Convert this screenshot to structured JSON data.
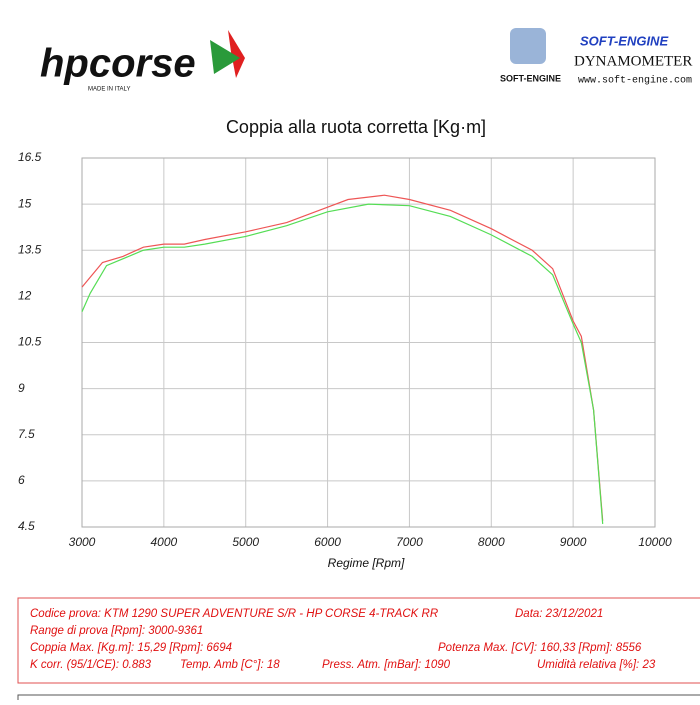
{
  "header": {
    "brand": "hpcorse",
    "brand_tagline": "MADE IN ITALY",
    "dyno_brand": "SOFT-ENGINE",
    "dyno_title": "DYNAMOMETER",
    "dyno_small": "SOFT-ENGINE",
    "dyno_url": "www.soft-engine.com"
  },
  "chart_data": {
    "type": "line",
    "title": "Coppia alla ruota corretta [Kg·m]",
    "x_label": "Regime [Rpm]",
    "xlim": [
      3000,
      10000
    ],
    "xticks": [
      3000,
      4000,
      5000,
      6000,
      7000,
      8000,
      9000,
      10000
    ],
    "ylim": [
      4.5,
      16.5
    ],
    "yticks": [
      4.5,
      6,
      7.5,
      9,
      10.5,
      12,
      13.5,
      15,
      16.5
    ],
    "grid": true,
    "series": [
      {
        "color": "#ee5555",
        "x": [
          3000,
          3250,
          3500,
          3750,
          4000,
          4250,
          4500,
          5000,
          5500,
          6000,
          6250,
          6694,
          7000,
          7500,
          8000,
          8500,
          8750,
          9000,
          9100,
          9250,
          9361
        ],
        "values": [
          12.3,
          13.1,
          13.3,
          13.6,
          13.7,
          13.7,
          13.85,
          14.1,
          14.4,
          14.9,
          15.15,
          15.29,
          15.15,
          14.8,
          14.2,
          13.5,
          12.9,
          11.2,
          10.7,
          8.3,
          4.7
        ]
      },
      {
        "color": "#55dd55",
        "x": [
          3000,
          3100,
          3300,
          3750,
          4000,
          4250,
          4500,
          5000,
          5500,
          6000,
          6500,
          7000,
          7500,
          8000,
          8500,
          8750,
          9000,
          9100,
          9250,
          9361
        ],
        "values": [
          11.5,
          12.1,
          13.0,
          13.5,
          13.6,
          13.6,
          13.7,
          13.95,
          14.3,
          14.75,
          15.0,
          14.95,
          14.6,
          14.0,
          13.3,
          12.7,
          11.1,
          10.5,
          8.3,
          4.6
        ]
      }
    ]
  },
  "info": {
    "lines": [
      [
        "Codice prova: KTM 1290  SUPER ADVENTURE S/R - HP CORSE  4-TRACK RR",
        "Data: 23/12/2021"
      ],
      [
        "Range di prova [Rpm]: 3000-9361"
      ],
      [
        "Coppia Max. [Kg.m]: 15,29 [Rpm]: 6694",
        "Potenza Max. [CV]: 160,33 [Rpm]: 8556"
      ],
      [
        "K corr. (95/1/CE): 0.883",
        "Temp. Amb [C°]: 18",
        "Press. Atm. [mBar]: 1090",
        "Umidità relativa [%]: 23"
      ]
    ]
  }
}
